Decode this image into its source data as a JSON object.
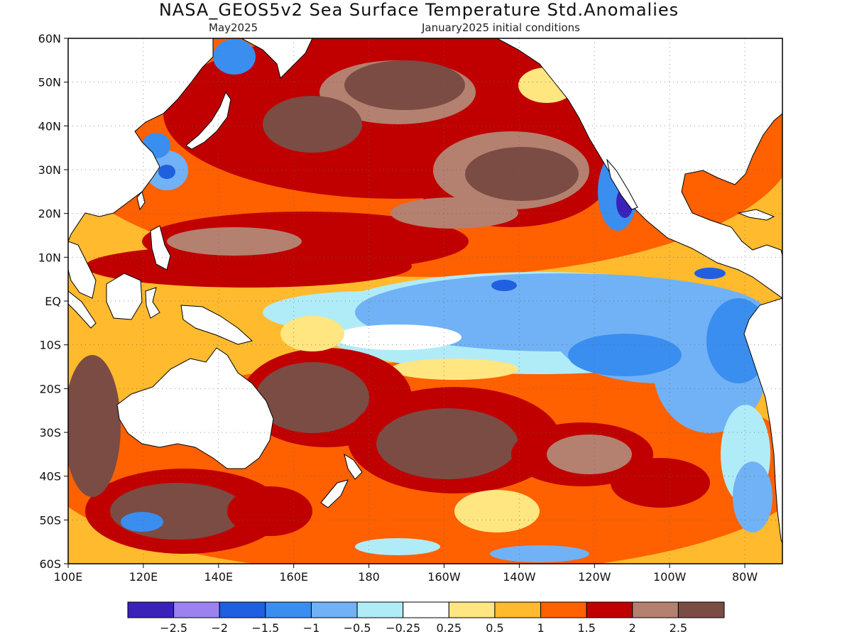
{
  "title": "NASA_GEOS5v2 Sea Surface Temperature Std.Anomalies",
  "subtitle_left": "May2025",
  "subtitle_right": "January2025 initial conditions",
  "lat_labels": [
    "60N",
    "50N",
    "40N",
    "30N",
    "20N",
    "10N",
    "EQ",
    "10S",
    "20S",
    "30S",
    "40S",
    "50S",
    "60S"
  ],
  "lon_labels": [
    "100E",
    "120E",
    "140E",
    "160E",
    "180",
    "160W",
    "140W",
    "120W",
    "100W",
    "80W"
  ],
  "colorbar": {
    "colors": [
      "#3a22b8",
      "#9b82f0",
      "#1f5fe0",
      "#3a8ef0",
      "#70b2f5",
      "#b0ecf8",
      "#ffffff",
      "#ffe680",
      "#ffba2e",
      "#ff6000",
      "#c00000",
      "#b48070",
      "#7a4c44"
    ],
    "labels": [
      "−2.5",
      "−2",
      "−1.5",
      "−1",
      "−0.5",
      "−0.25",
      "0.25",
      "0.5",
      "1",
      "1.5",
      "2",
      "2.5"
    ]
  },
  "palette": {
    "ocean_base": "#ffba2e",
    "warm": "#ff6000",
    "hot": "#c00000",
    "very_hot": "#b48070",
    "extreme": "#7a4c44",
    "cool": "#b0ecf8",
    "cold": "#70b2f5",
    "colder": "#3a8ef0",
    "coldest": "#1f5fe0",
    "land": "#ffffff"
  }
}
